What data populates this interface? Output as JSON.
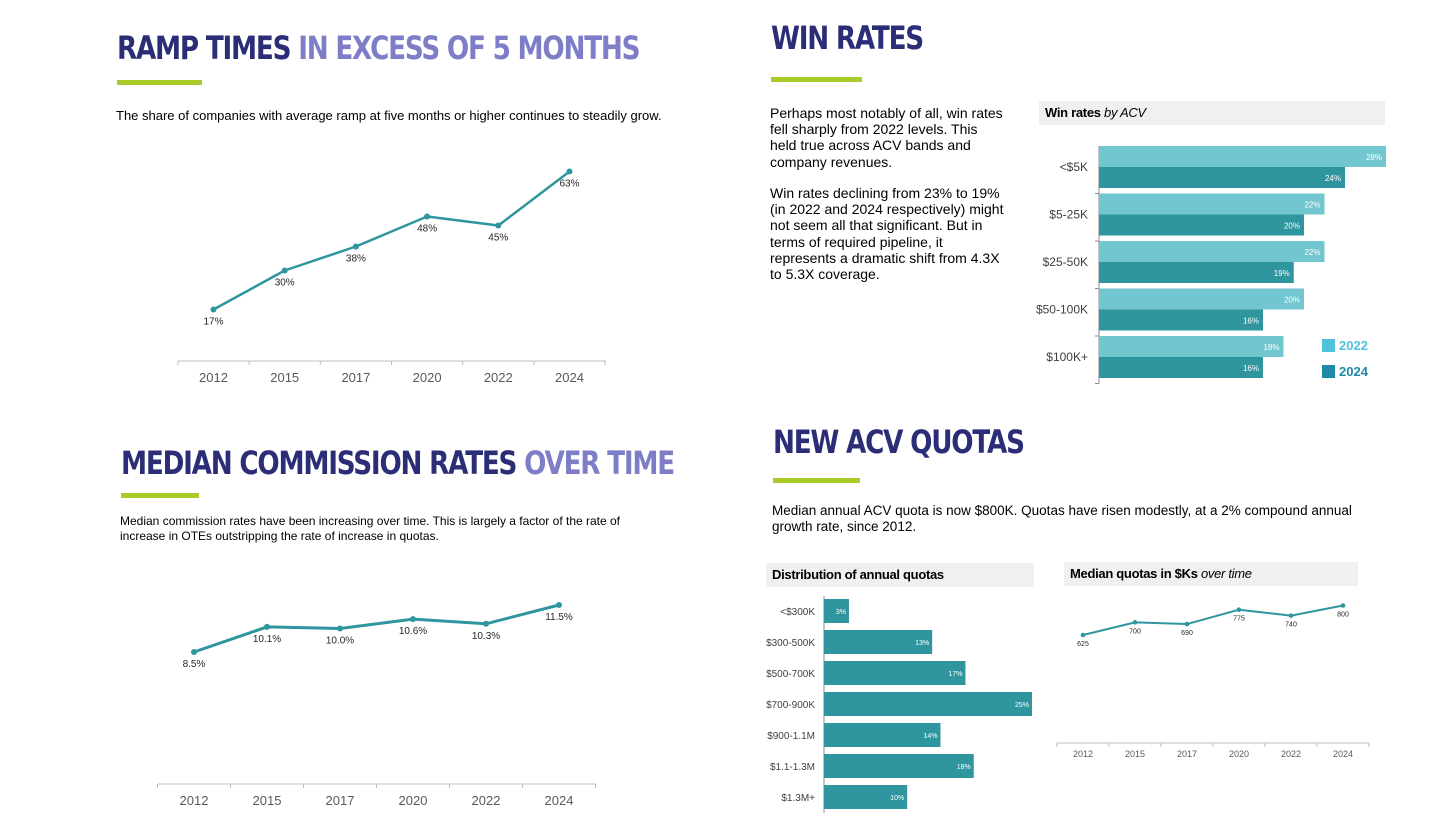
{
  "ramp": {
    "title_main": "RAMP TIMES",
    "title_highlight": "IN EXCESS OF 5 MONTHS",
    "description": "The share of companies with average ramp at five months or higher continues to steadily grow."
  },
  "win": {
    "title": "WIN RATES",
    "para1": "Perhaps most notably of all, win rates fell sharply from 2022 levels. This held true across ACV bands and company revenues.",
    "para2": "Win rates declining from 23% to 19% (in 2022 and 2024 respectively) might not seem all that significant. But in terms of required pipeline, it represents a dramatic shift from 4.3X to 5.3X coverage.",
    "chart_title_bold": "Win rates",
    "chart_title_italic": "by ACV"
  },
  "commission": {
    "title_main": "MEDIAN COMMISSION RATES",
    "title_highlight": "OVER TIME",
    "description": "Median commission rates have been increasing over time. This is largely a factor of the rate of increase in OTEs outstripping the rate of increase in quotas."
  },
  "quota": {
    "title": "NEW ACV QUOTAS",
    "description": "Median annual ACV quota is now $800K. Quotas have risen modestly, at a 2% compound annual growth rate, since 2012.",
    "dist_title": "Distribution of annual quotas",
    "median_title_bold": "Median quotas in $Ks",
    "median_title_italic": "over time"
  },
  "colors": {
    "teal": "#2f959f",
    "light_teal": "#72c6cf",
    "legend_light": "#4fc3d9",
    "legend_dark": "#1e8aa5",
    "navy": "#2c2d77",
    "lavender": "#7d7ec7",
    "accent": "#a9cc2b"
  },
  "chart_data": [
    {
      "id": "ramp",
      "type": "line",
      "x": [
        "2012",
        "2015",
        "2017",
        "2020",
        "2022",
        "2024"
      ],
      "values": [
        17,
        30,
        38,
        48,
        45,
        63
      ],
      "labels": [
        "17%",
        "30%",
        "38%",
        "48%",
        "45%",
        "63%"
      ]
    },
    {
      "id": "win",
      "type": "bar",
      "orientation": "horizontal",
      "categories": [
        "<$5K",
        "$5-25K",
        "$25-50K",
        "$50-100K",
        "$100K+"
      ],
      "series": [
        {
          "name": "2022",
          "values": [
            28,
            22,
            22,
            20,
            18
          ],
          "labels": [
            "28%",
            "22%",
            "22%",
            "20%",
            "18%"
          ]
        },
        {
          "name": "2024",
          "values": [
            24,
            20,
            19,
            16,
            16
          ],
          "labels": [
            "24%",
            "20%",
            "19%",
            "16%",
            "16%"
          ]
        }
      ],
      "legend": "right"
    },
    {
      "id": "commission",
      "type": "line",
      "x": [
        "2012",
        "2015",
        "2017",
        "2020",
        "2022",
        "2024"
      ],
      "values": [
        8.5,
        10.1,
        10.0,
        10.6,
        10.3,
        11.5
      ],
      "labels": [
        "8.5%",
        "10.1%",
        "10.0%",
        "10.6%",
        "10.3%",
        "11.5%"
      ]
    },
    {
      "id": "distribution",
      "type": "bar",
      "orientation": "horizontal",
      "categories": [
        "<$300K",
        "$300-500K",
        "$500-700K",
        "$700-900K",
        "$900-1.1M",
        "$1.1-1.3M",
        "$1.3M+"
      ],
      "values": [
        3,
        13,
        17,
        25,
        14,
        18,
        10
      ],
      "labels": [
        "3%",
        "13%",
        "17%",
        "25%",
        "14%",
        "18%",
        "10%"
      ]
    },
    {
      "id": "median_quotas",
      "type": "line",
      "x": [
        "2012",
        "2015",
        "2017",
        "2020",
        "2022",
        "2024"
      ],
      "values": [
        625,
        700,
        690,
        775,
        740,
        800
      ],
      "labels": [
        "625",
        "700",
        "690",
        "775",
        "740",
        "800"
      ]
    }
  ]
}
